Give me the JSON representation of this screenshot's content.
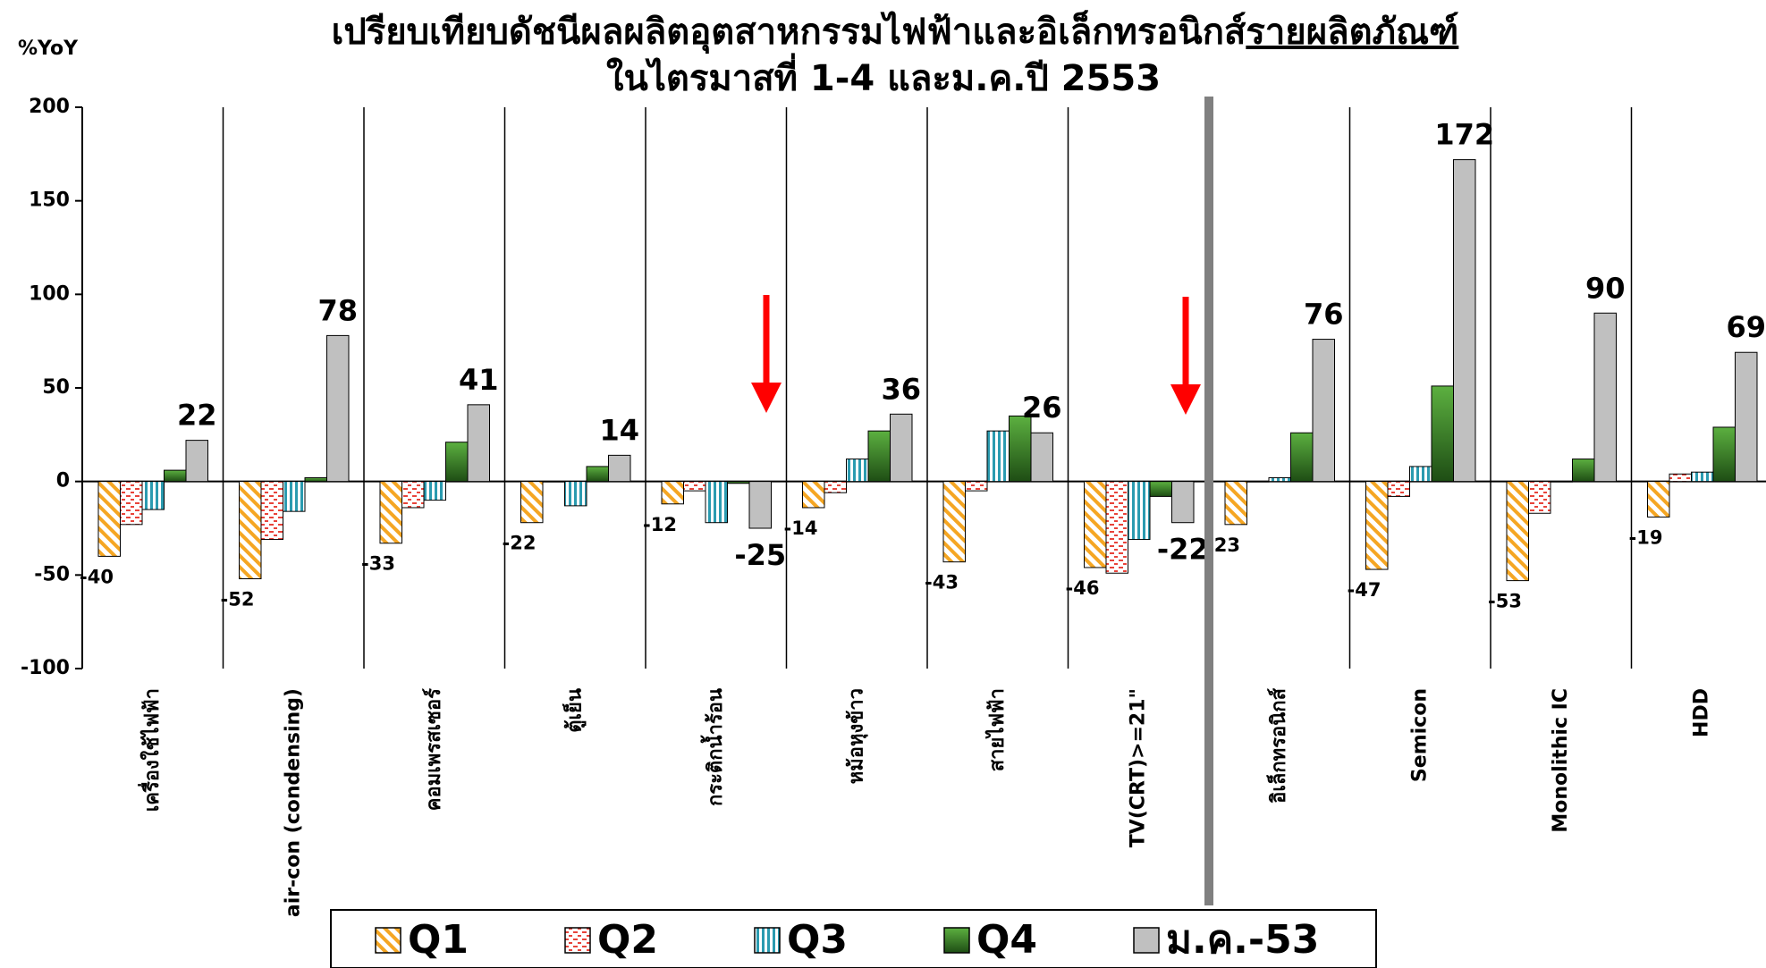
{
  "chart_data": {
    "type": "bar",
    "title_line1": "เปรียบเทียบดัชนีผลผลิตอุตสาหกรรมไฟฟ้าและอิเล็กทรอนิกส์",
    "title_underlined": "รายผลิตภัณฑ์",
    "title_line2": "ในไตรมาสที่ 1-4 และม.ค.ปี 2553",
    "y_label": "%YoY",
    "categories": [
      "เครื่องใช้ไฟฟ้า",
      "air-con (condensing)",
      "คอมเพรสเซอร์",
      "ตู้เย็น",
      "กระติกน้ำร้อน",
      "หม้อหุงข้าว",
      "สายไฟฟ้า",
      "TV(CRT)>=21\"",
      "อิเล็กทรอนิกส์",
      "Semicon",
      "Monolithic IC",
      "HDD"
    ],
    "series": [
      {
        "name": "Q1",
        "color": "#f5a623",
        "pattern": "diagonal",
        "show_labels": true,
        "values": [
          -40,
          -52,
          -33,
          -22,
          -12,
          -14,
          -43,
          -46,
          -23,
          -47,
          -53,
          -19
        ]
      },
      {
        "name": "Q2",
        "color": "#e8433a",
        "pattern": "dashes",
        "show_labels": false,
        "values": [
          -23,
          -31,
          -14,
          0,
          -5,
          -6,
          -5,
          -49,
          0,
          -8,
          -17,
          4
        ]
      },
      {
        "name": "Q3",
        "color": "#2b9bb0",
        "pattern": "vertical",
        "show_labels": false,
        "values": [
          -15,
          -16,
          -10,
          -13,
          -22,
          12,
          27,
          -31,
          2,
          8,
          0,
          5
        ]
      },
      {
        "name": "Q4",
        "color": "#3a8a2a",
        "pattern": "gradient",
        "show_labels": false,
        "values": [
          6,
          2,
          21,
          8,
          -1,
          27,
          35,
          -8,
          26,
          51,
          12,
          29
        ]
      },
      {
        "name": "ม.ค.-53",
        "color": "#c0c0c0",
        "pattern": "solid",
        "show_labels": true,
        "values": [
          22,
          78,
          41,
          14,
          -25,
          36,
          26,
          -22,
          76,
          172,
          90,
          69
        ]
      }
    ],
    "ylim": [
      -100,
      200
    ],
    "yticks": [
      -100,
      -50,
      0,
      50,
      100,
      150,
      200
    ],
    "grid": false,
    "legend": "bottom"
  }
}
